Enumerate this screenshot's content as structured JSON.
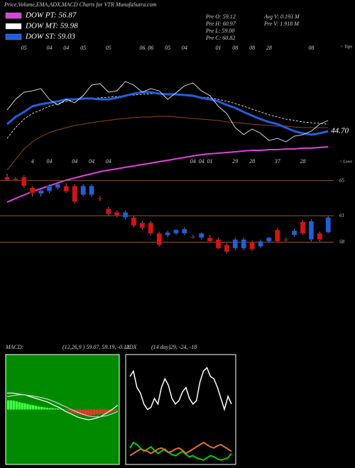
{
  "header": {
    "title": "Price,Volume,EMA,ADX,MACD Charts for VTR MunafaSutra.com",
    "stats": [
      [
        "Pre   O: 59.12",
        "Pre   H: 60.97",
        "Pre   L: 59.00",
        "Pre   C: 60.82"
      ],
      [
        "Avg V: 0.193 M",
        "Pre   V: 1.918 M"
      ]
    ]
  },
  "chart_data": [
    {
      "type": "line",
      "categories": [
        null,
        null,
        "05",
        null,
        null,
        "04",
        null,
        "04",
        null,
        "05",
        null,
        null,
        "05",
        null,
        null,
        null,
        "06",
        "06",
        null,
        "05",
        null,
        "04",
        null,
        null,
        null,
        "01",
        null,
        "08",
        null,
        "08",
        null,
        "28",
        null,
        null,
        null,
        null,
        "08",
        null,
        null
      ],
      "ylim": [
        0,
        100
      ],
      "series": [
        {
          "color": "#8b4513",
          "values": [
            21.3,
            27.7,
            34.0,
            38.3,
            41.3,
            43.8,
            45.5,
            46.8,
            48.1,
            48.9,
            49.8,
            50.6,
            51.1,
            51.9,
            52.3,
            52.8,
            53.2,
            53.2,
            53.6,
            53.6,
            53.2,
            52.8,
            52.3,
            51.9,
            51.5,
            51.1,
            50.2,
            49.8,
            49.4,
            48.9,
            48.5,
            48.1,
            47.7,
            47.7,
            47.2,
            46.8,
            46.8,
            46.8,
            46.8
          ]
        },
        {
          "name": "DOW PT: 56.87",
          "color": "#e040e0",
          "values": [
            2.1,
            4.3,
            6.4,
            8.5,
            10.2,
            11.9,
            13.6,
            15.3,
            16.6,
            17.9,
            19.1,
            20.4,
            21.3,
            22.1,
            23.0,
            23.8,
            24.7,
            25.5,
            26.4,
            27.2,
            28.1,
            28.9,
            29.8,
            30.6,
            31.1,
            31.5,
            31.9,
            32.3,
            32.8,
            33.2,
            33.2,
            33.6,
            33.6,
            34.0,
            34.0,
            34.5,
            34.5,
            34.9,
            35.3
          ]
        },
        {
          "name": "DOW MT: 59.98",
          "color": "#ffffff",
          "values": [
            40.4,
            46.8,
            51.9,
            55.3,
            57.4,
            59.6,
            61.3,
            62.6,
            63.4,
            63.8,
            64.3,
            64.7,
            65.1,
            65.5,
            66.0,
            66.4,
            66.8,
            67.2,
            67.2,
            66.8,
            66.4,
            66.0,
            65.5,
            65.1,
            64.7,
            63.8,
            62.6,
            61.3,
            59.6,
            57.9,
            56.2,
            54.5,
            53.2,
            51.9,
            51.1,
            50.2,
            49.8,
            49.4,
            48.9
          ]
        },
        {
          "name": "DOW ST: 59.03",
          "color": "#1e5fe0",
          "values": [
            48.9,
            53.2,
            56.2,
            59.6,
            60.9,
            61.7,
            62.6,
            63.8,
            63.8,
            64.3,
            64.3,
            63.8,
            63.8,
            64.7,
            66.0,
            67.2,
            68.1,
            68.1,
            67.2,
            66.8,
            66.8,
            66.4,
            66.0,
            64.7,
            63.8,
            62.6,
            60.4,
            58.7,
            56.2,
            54.0,
            51.9,
            50.2,
            48.9,
            46.8,
            44.7,
            43.4,
            42.6,
            43.4,
            44.7
          ]
        },
        {
          "color": "#e8e8e8",
          "values": [
            57.4,
            63.8,
            68.1,
            68.9,
            70.2,
            63.8,
            60.4,
            63.8,
            61.7,
            66.0,
            72.3,
            73.2,
            68.1,
            68.9,
            74.5,
            72.3,
            68.1,
            70.2,
            68.9,
            63.8,
            67.7,
            71.9,
            73.6,
            68.9,
            66.0,
            59.6,
            55.3,
            46.8,
            42.6,
            46.0,
            43.4,
            39.1,
            40.4,
            38.3,
            41.7,
            42.6,
            44.7,
            48.9,
            51.1
          ]
        }
      ],
      "end_label": "44.70",
      "corner_labels": [
        "< Tops",
        "< Lows"
      ]
    },
    {
      "type": "candlestick",
      "categories": [
        null,
        null,
        null,
        "4",
        null,
        "04",
        null,
        null,
        "04",
        null,
        "04",
        null,
        "04",
        null,
        null,
        null,
        null,
        null,
        null,
        null,
        null,
        null,
        "04",
        "04",
        "01",
        null,
        null,
        "29",
        null,
        "28",
        null,
        null,
        "37",
        null,
        null,
        "28",
        null,
        null,
        null
      ],
      "ylim": [
        56.1,
        67.0
      ],
      "yticks": [
        58,
        61,
        65
      ],
      "grid": true,
      "grid_color": "#8b5a2b",
      "up_color": "#1e5fe0",
      "down_color": "#e01010",
      "open": [
        65.4,
        65.2,
        65.4,
        64.2,
        63.5,
        63.8,
        64.2,
        64.4,
        64.4,
        63.4,
        63.4,
        63.0,
        61.8,
        61.4,
        60.8,
        60.8,
        60.2,
        60.2,
        59.0,
        58.8,
        59.0,
        59.0,
        58.6,
        58.5,
        58.5,
        58.3,
        57.7,
        57.3,
        57.3,
        58.0,
        57.5,
        58.1,
        59.4,
        58.3,
        58.8,
        60.3,
        58.3,
        59.0,
        59.12
      ],
      "high": [
        65.8,
        65.4,
        65.6,
        64.4,
        64.0,
        64.6,
        64.8,
        64.7,
        64.6,
        64.6,
        64.6,
        63.2,
        62.0,
        61.6,
        61.6,
        61.0,
        60.4,
        60.4,
        59.2,
        59.3,
        59.5,
        59.7,
        58.8,
        59.1,
        58.8,
        58.5,
        57.9,
        58.5,
        58.5,
        58.2,
        58.3,
        58.6,
        59.6,
        58.5,
        59.5,
        60.5,
        60.6,
        59.2,
        60.97
      ],
      "low": [
        65.0,
        65.0,
        64.2,
        63.2,
        63.2,
        63.6,
        64.0,
        63.6,
        62.4,
        63.2,
        63.2,
        62.7,
        61.0,
        60.8,
        60.6,
        59.7,
        59.4,
        58.8,
        57.5,
        58.6,
        58.8,
        58.8,
        58.4,
        58.3,
        58.0,
        57.2,
        56.7,
        57.1,
        57.1,
        57.0,
        57.3,
        57.9,
        58.0,
        58.1,
        58.6,
        58.8,
        58.1,
        58.1,
        59.0
      ],
      "close": [
        65.1,
        65.0,
        64.4,
        63.6,
        63.9,
        64.4,
        64.6,
        63.8,
        62.6,
        64.4,
        64.4,
        62.9,
        61.2,
        61.0,
        61.4,
        59.9,
        59.6,
        59.0,
        57.7,
        59.1,
        59.4,
        59.5,
        58.5,
        59.0,
        58.1,
        57.3,
        56.9,
        58.3,
        58.3,
        57.2,
        58.1,
        58.5,
        58.1,
        58.2,
        59.3,
        59.0,
        60.4,
        58.3,
        60.82
      ]
    },
    {
      "type": "macd",
      "title": "MACD:",
      "subtitle": "(12,26,9 ) 59.07, 59.19, -0.12",
      "ylim": [
        -1.5,
        1.5
      ],
      "background": "#008a00",
      "pos_color": "#40ff40",
      "neg_color": "#ff3030",
      "histogram": [
        0.25,
        0.25,
        0.24,
        0.22,
        0.2,
        0.18,
        0.17,
        0.15,
        0.13,
        0.12,
        0.1,
        0.08,
        0.07,
        0.06,
        0.05,
        0.04,
        0.04,
        0.03,
        0.03,
        0.02,
        0.01,
        -0.02,
        -0.05,
        -0.08,
        -0.1,
        -0.12,
        -0.14,
        -0.15,
        -0.16,
        -0.15,
        -0.15,
        -0.14,
        -0.13,
        -0.12,
        -0.12,
        -0.11,
        -0.1,
        -0.08,
        -0.05,
        -0.03
      ],
      "series": [
        {
          "color": "#ffffff",
          "values": [
            0.45,
            0.45,
            0.42,
            0.4,
            0.35,
            0.3,
            0.25,
            0.2,
            0.12,
            0.05,
            -0.05,
            -0.12,
            -0.2,
            -0.25,
            -0.28,
            -0.25,
            -0.2,
            -0.1,
            0.0,
            0.12
          ]
        },
        {
          "color": "#d0d0d0",
          "values": [
            0.35,
            0.38,
            0.4,
            0.4,
            0.38,
            0.35,
            0.32,
            0.28,
            0.22,
            0.15,
            0.08,
            0.0,
            -0.07,
            -0.13,
            -0.18,
            -0.2,
            -0.2,
            -0.17,
            -0.12,
            -0.05
          ]
        }
      ]
    },
    {
      "type": "adx",
      "title": "ADX",
      "subtitle": "(14 day)29, -24, -18",
      "ylim": [
        0,
        100
      ],
      "background": "#000000",
      "series": [
        {
          "color": "#ffffff",
          "values": [
            80,
            85,
            70,
            65,
            55,
            50,
            52,
            60,
            55,
            70,
            78,
            72,
            60,
            55,
            58,
            66,
            70,
            60,
            55,
            58,
            75,
            85,
            88,
            80,
            78,
            70,
            60,
            50,
            62,
            55
          ]
        },
        {
          "color": "#00d000",
          "values": [
            15,
            20,
            18,
            15,
            12,
            14,
            16,
            13,
            10,
            12,
            14,
            11,
            9,
            8,
            10,
            12,
            9,
            7,
            8,
            6,
            5,
            4,
            6,
            8,
            7,
            5,
            4,
            5,
            6,
            10
          ]
        },
        {
          "color": "#e07020",
          "values": [
            8,
            10,
            12,
            14,
            13,
            12,
            10,
            12,
            14,
            15,
            13,
            11,
            12,
            14,
            15,
            13,
            10,
            12,
            14,
            16,
            18,
            20,
            18,
            16,
            15,
            17,
            18,
            16,
            14,
            12
          ]
        }
      ]
    }
  ]
}
